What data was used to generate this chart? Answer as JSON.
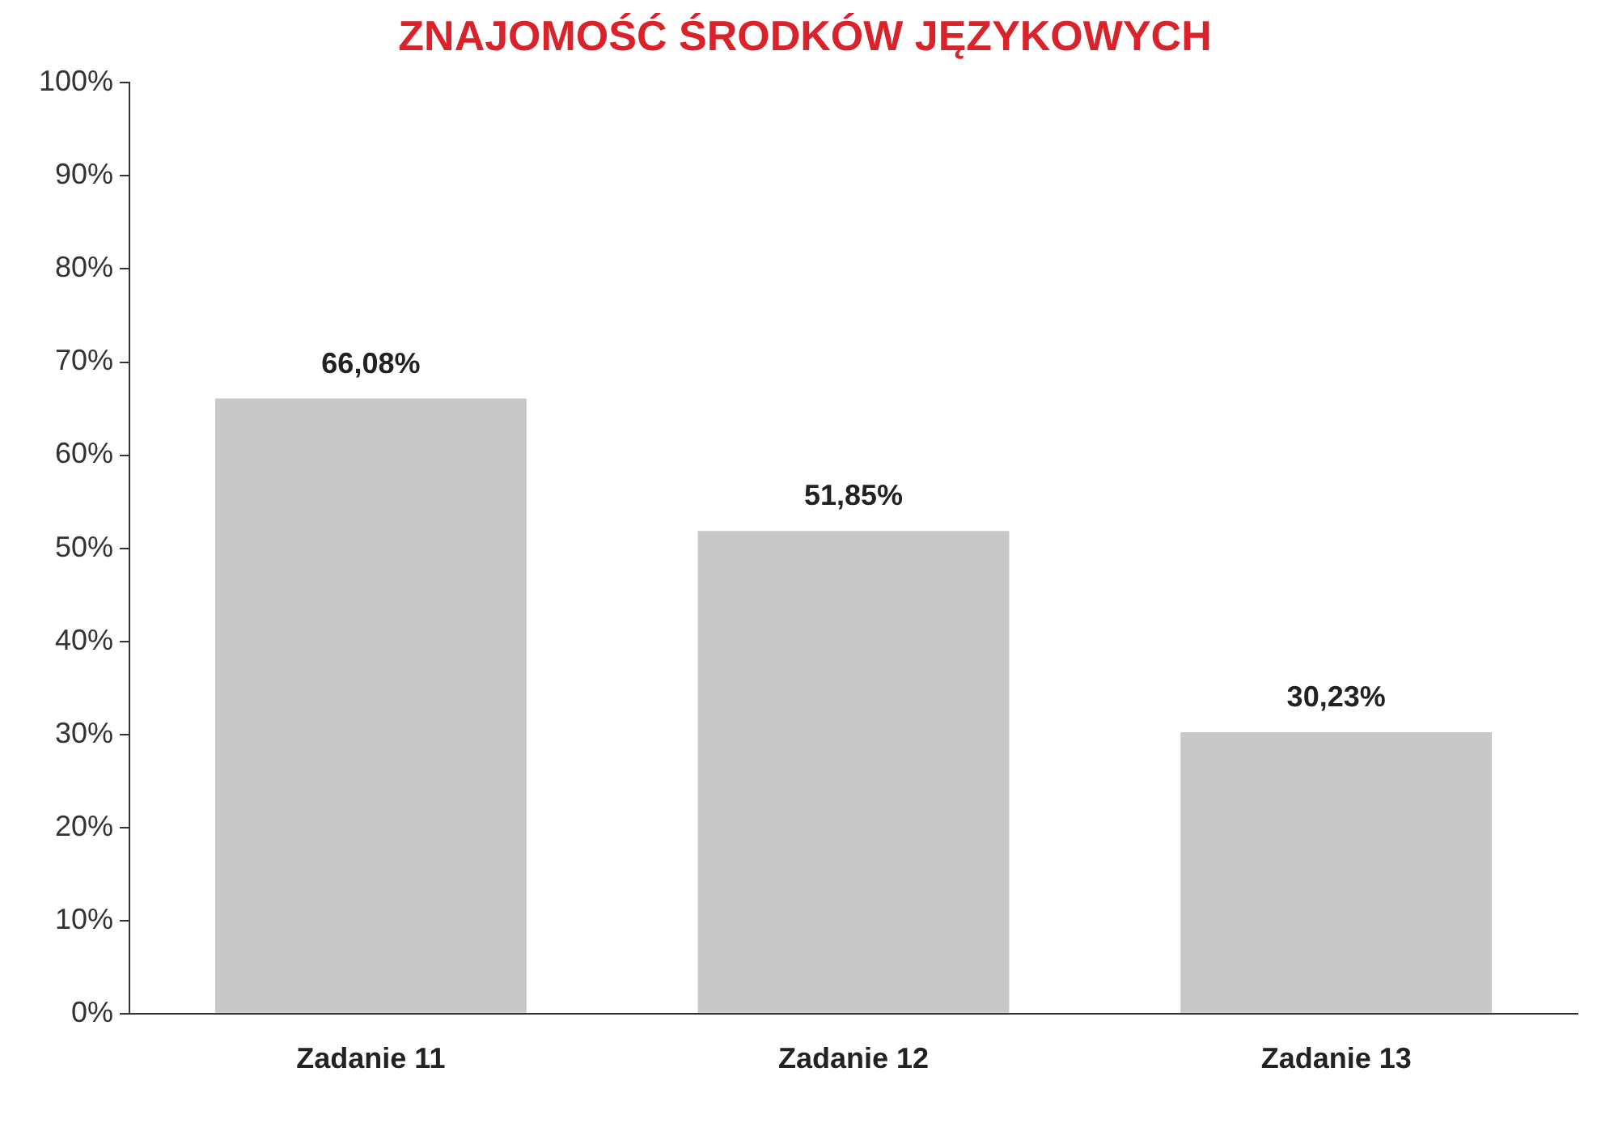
{
  "chart_data": {
    "type": "bar",
    "title": "ZNAJOMOŚĆ ŚRODKÓW JĘZYKOWYCH",
    "categories": [
      "Zadanie 11",
      "Zadanie 12",
      "Zadanie 13"
    ],
    "values": [
      66.08,
      51.85,
      30.23
    ],
    "value_labels": [
      "66,08%",
      "51,85%",
      "30,23%"
    ],
    "color": "#c8c8c8",
    "ylim": [
      0,
      100
    ],
    "yticks": [
      {
        "value": 0,
        "label": "0%"
      },
      {
        "value": 10,
        "label": "10%"
      },
      {
        "value": 20,
        "label": "20%"
      },
      {
        "value": 30,
        "label": "30%"
      },
      {
        "value": 40,
        "label": "40%"
      },
      {
        "value": 50,
        "label": "50%"
      },
      {
        "value": 60,
        "label": "60%"
      },
      {
        "value": 70,
        "label": "70%"
      },
      {
        "value": 80,
        "label": "80%"
      },
      {
        "value": 90,
        "label": "90%"
      },
      {
        "value": 100,
        "label": "100%"
      }
    ],
    "grid": false,
    "legend": false
  }
}
